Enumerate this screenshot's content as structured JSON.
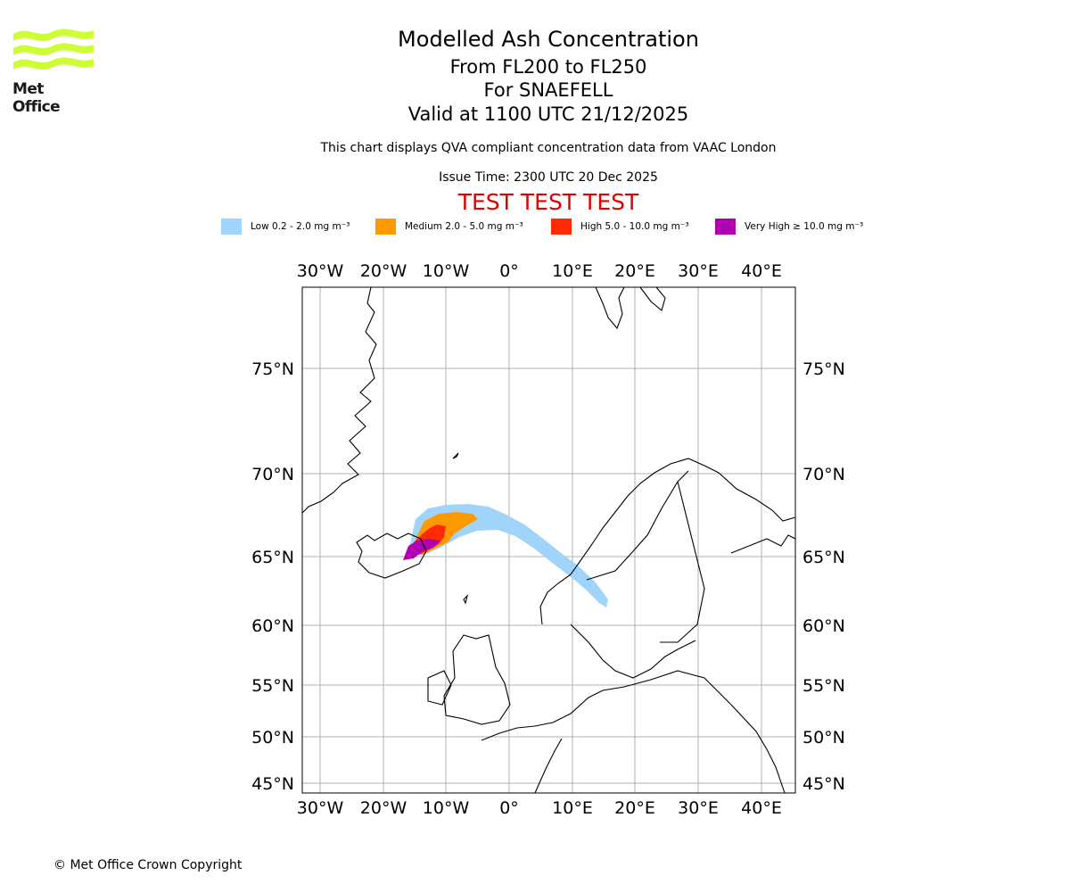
{
  "brand": {
    "logo_text": "Met Office",
    "logo_color": "#ccff33"
  },
  "header": {
    "title": "Modelled Ash Concentration",
    "level_range": "From FL200 to FL250",
    "volcano": "For SNAEFELL",
    "valid_time": "Valid at 1100 UTC 21/12/2025",
    "description": "This chart displays QVA compliant concentration data from VAAC London",
    "issue_time": "Issue Time: 2300 UTC 20 Dec 2025",
    "test_banner": "TEST TEST TEST",
    "test_color": "#e00000"
  },
  "legend": [
    {
      "label": "Low 0.2 - 2.0 mg m⁻³",
      "color": "#a0d4fa"
    },
    {
      "label": "Medium 2.0 - 5.0 mg m⁻³",
      "color": "#ff9900"
    },
    {
      "label": "High 5.0 - 10.0 mg m⁻³",
      "color": "#ff2a00"
    },
    {
      "label": "Very High  ≥  10.0 mg m⁻³",
      "color": "#b000b0"
    }
  ],
  "map": {
    "longitude_labels": [
      "30°W",
      "20°W",
      "10°W",
      "0°",
      "10°E",
      "20°E",
      "30°E",
      "40°E"
    ],
    "latitude_labels": [
      "75°N",
      "70°N",
      "65°N",
      "60°N",
      "55°N",
      "50°N",
      "45°N"
    ],
    "gridline_color": "#b0b0b0"
  },
  "footer": {
    "copyright": "© Met Office Crown Copyright"
  }
}
